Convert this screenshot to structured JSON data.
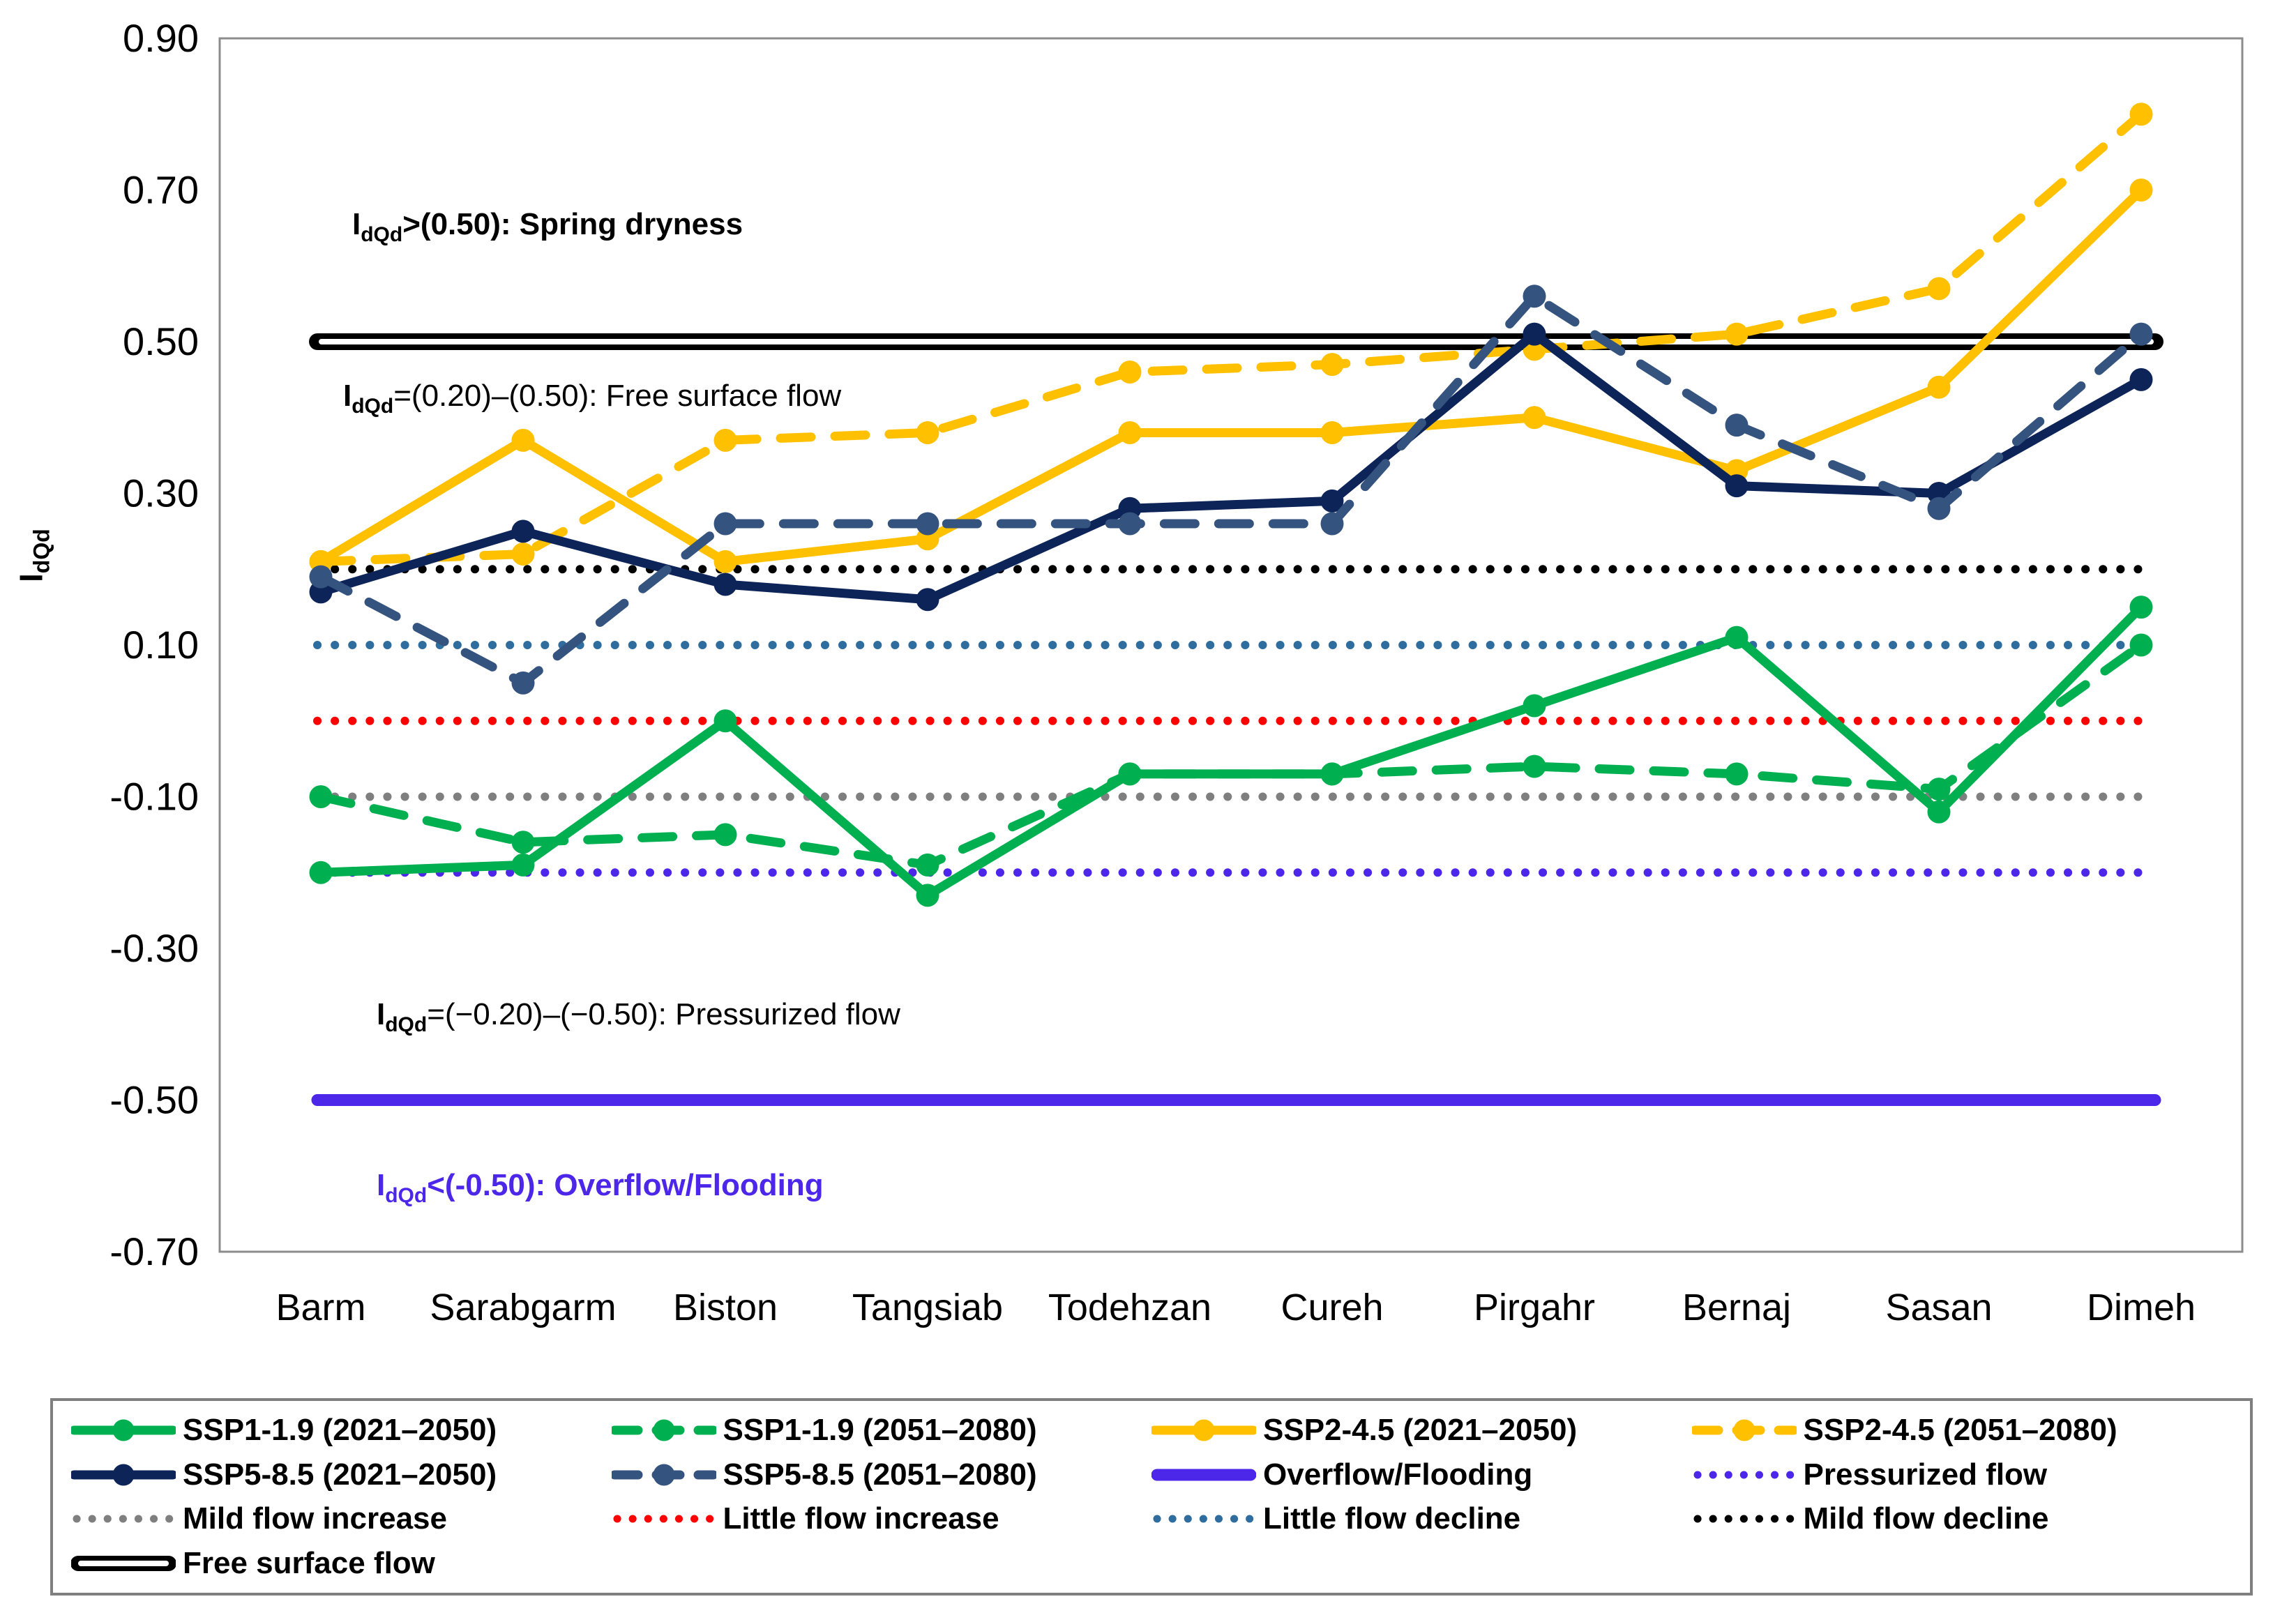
{
  "figure": {
    "background": "#FFFFFF",
    "plot_border_color": "#8C8C8C"
  },
  "y_axis": {
    "title_main": "I",
    "title_sub": "dQd",
    "ticks": [
      "0.90",
      "0.70",
      "0.50",
      "0.30",
      "0.10",
      "-0.10",
      "-0.30",
      "-0.50",
      "-0.70"
    ],
    "tick_values": [
      0.9,
      0.7,
      0.5,
      0.3,
      0.1,
      -0.1,
      -0.3,
      -0.5,
      -0.7
    ]
  },
  "annotations": [
    {
      "prefix": "I",
      "sub": "dQd",
      "text": ">(0.50): Spring dryness",
      "color": "#000000"
    },
    {
      "prefix": "I",
      "sub": "dQd",
      "text": "=(0.20)–(0.50): Free surface flow",
      "color": "#000000"
    },
    {
      "prefix": "I",
      "sub": "dQd",
      "text": "=(−0.20)–(−0.50): Pressurized flow",
      "color": "#000000"
    },
    {
      "prefix": "I",
      "sub": "dQd",
      "text": "<(-0.50): Overflow/Flooding",
      "color": "#4C26E9"
    }
  ],
  "chart_data": {
    "type": "line",
    "title": "",
    "xlabel": "",
    "ylabel": "IdQd",
    "ylim": [
      -0.7,
      0.9
    ],
    "grid": "off",
    "legend_position": "bottom",
    "categories": [
      "Barm",
      "Sarabgarm",
      "Biston",
      "Tangsiab",
      "Todehzan",
      "Cureh",
      "Pirgahr",
      "Bernaj",
      "Sasan",
      "Dimeh"
    ],
    "series": [
      {
        "name": "SSP1-1.9 (2021–2050)",
        "color": "#00B050",
        "line": "solid",
        "values": [
          -0.2,
          -0.19,
          0.0,
          -0.23,
          -0.07,
          -0.07,
          0.02,
          0.11,
          -0.12,
          0.15
        ]
      },
      {
        "name": "SSP1-1.9 (2051–2080)",
        "color": "#00B050",
        "line": "dashed",
        "values": [
          -0.1,
          -0.16,
          -0.15,
          -0.19,
          -0.07,
          -0.07,
          -0.06,
          -0.07,
          -0.09,
          0.1
        ]
      },
      {
        "name": "SSP2-4.5 (2021–2050)",
        "color": "#FFC000",
        "line": "solid",
        "values": [
          0.21,
          0.37,
          0.21,
          0.24,
          0.38,
          0.38,
          0.4,
          0.33,
          0.44,
          0.7
        ]
      },
      {
        "name": "SSP2-4.5 (2051–2080)",
        "color": "#FFC000",
        "line": "dashed",
        "values": [
          0.21,
          0.22,
          0.37,
          0.38,
          0.46,
          0.47,
          0.49,
          0.51,
          0.57,
          0.8
        ]
      },
      {
        "name": "SSP5-8.5 (2021–2050)",
        "color": "#0D2459",
        "line": "solid",
        "values": [
          0.17,
          0.25,
          0.18,
          0.16,
          0.28,
          0.29,
          0.51,
          0.31,
          0.3,
          0.45
        ]
      },
      {
        "name": "SSP5-8.5 (2051–2080)",
        "color": "#35537F",
        "line": "dashed",
        "values": [
          0.19,
          0.05,
          0.26,
          0.26,
          0.26,
          0.26,
          0.56,
          0.39,
          0.28,
          0.51
        ]
      }
    ],
    "reference_lines": [
      {
        "label": "Free surface flow",
        "value": 0.5,
        "color": "#000000",
        "style": "double"
      },
      {
        "label": "Mild flow decline",
        "value": 0.2,
        "color": "#000000",
        "style": "dotted"
      },
      {
        "label": "Little flow decline",
        "value": 0.1,
        "color": "#2E6D9E",
        "style": "dotted"
      },
      {
        "label": "Little flow increase",
        "value": 0.0,
        "color": "#FF0000",
        "style": "dotted"
      },
      {
        "label": "Mild flow increase",
        "value": -0.1,
        "color": "#7F7F7F",
        "style": "dotted"
      },
      {
        "label": "Pressurized flow",
        "value": -0.2,
        "color": "#4C26E9",
        "style": "dotted"
      },
      {
        "label": "Overflow/Flooding",
        "value": -0.5,
        "color": "#4C26E9",
        "style": "thick"
      }
    ]
  },
  "legend": {
    "items": [
      {
        "label": "SSP1-1.9 (2021–2050)",
        "color": "#00B050",
        "style": "solid-marker"
      },
      {
        "label": "SSP1-1.9 (2051–2080)",
        "color": "#00B050",
        "style": "dashed-marker"
      },
      {
        "label": "SSP2-4.5 (2021–2050)",
        "color": "#FFC000",
        "style": "solid-marker"
      },
      {
        "label": "SSP2-4.5 (2051–2080)",
        "color": "#FFC000",
        "style": "dashed-marker"
      },
      {
        "label": "SSP5-8.5 (2021–2050)",
        "color": "#0D2459",
        "style": "solid-marker"
      },
      {
        "label": "SSP5-8.5  (2051–2080)",
        "color": "#35537F",
        "style": "dashed-marker"
      },
      {
        "label": "Overflow/Flooding",
        "color": "#4C26E9",
        "style": "thick"
      },
      {
        "label": "Pressurized flow",
        "color": "#4C26E9",
        "style": "dotted"
      },
      {
        "label": "Mild flow increase",
        "color": "#7F7F7F",
        "style": "dotted"
      },
      {
        "label": "Little flow increase",
        "color": "#FF0000",
        "style": "dotted"
      },
      {
        "label": "Little flow decline",
        "color": "#2E6D9E",
        "style": "dotted"
      },
      {
        "label": "Mild flow decline",
        "color": "#000000",
        "style": "dotted"
      },
      {
        "label": "Free surface flow",
        "color": "#000000",
        "style": "double"
      }
    ]
  }
}
